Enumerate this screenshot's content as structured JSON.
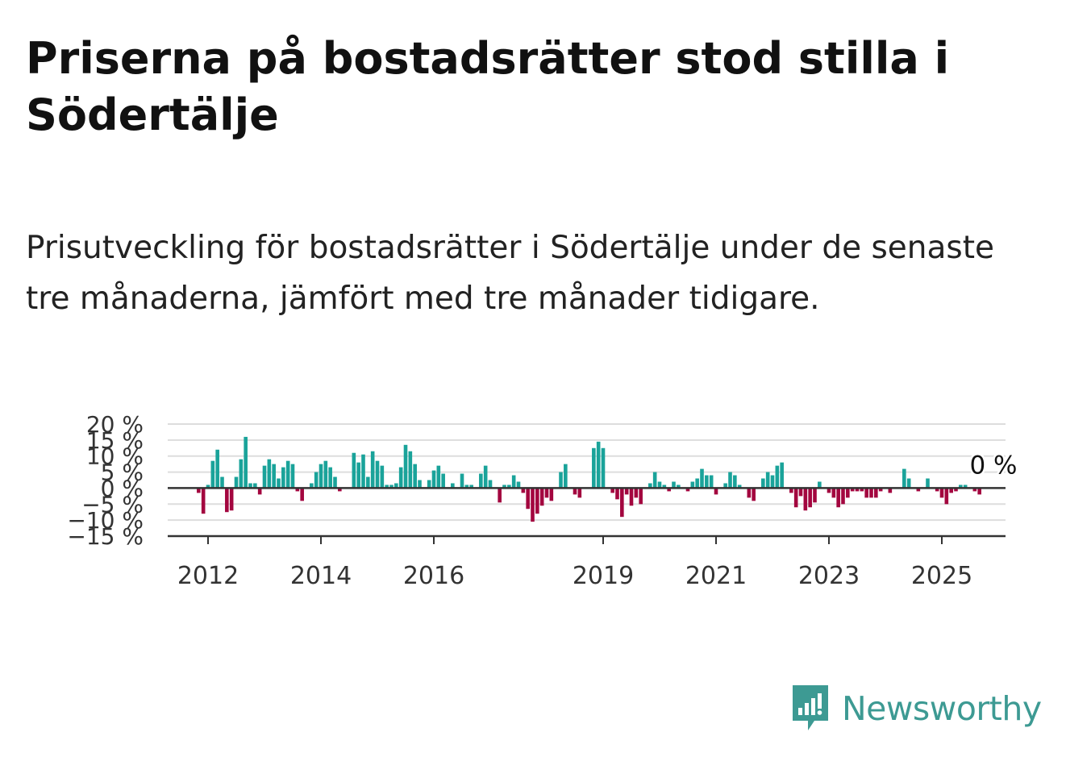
{
  "header": {
    "title": "Priserna på bostadsrätter stod stilla i Södertälje",
    "subtitle": "Prisutveckling för bostadsrätter i Södertälje under de senaste tre månaderna, jämfört med tre månader tidigare."
  },
  "brand": {
    "name": "Newsworthy",
    "icon": "newsworthy-logo-icon",
    "color": "#3d9a93"
  },
  "chart_data": {
    "type": "bar",
    "title": "",
    "xlabel": "",
    "ylabel": "",
    "ylim": [
      -15,
      20
    ],
    "y_ticks": [
      {
        "value": 20,
        "label": "20 %"
      },
      {
        "value": 15,
        "label": "15 %"
      },
      {
        "value": 10,
        "label": "10 %"
      },
      {
        "value": 5,
        "label": "5 %"
      },
      {
        "value": 0,
        "label": "0 %"
      },
      {
        "value": -5,
        "label": "−5 %"
      },
      {
        "value": -10,
        "label": "−10 %"
      },
      {
        "value": -15,
        "label": "−15 %"
      }
    ],
    "x_ticks": [
      {
        "year": 2012,
        "label": "2012"
      },
      {
        "year": 2014,
        "label": "2014"
      },
      {
        "year": 2016,
        "label": "2016"
      },
      {
        "year": 2019,
        "label": "2019"
      },
      {
        "year": 2021,
        "label": "2021"
      },
      {
        "year": 2023,
        "label": "2023"
      },
      {
        "year": 2025,
        "label": "2025"
      }
    ],
    "start": "2011-11",
    "frequency": "monthly",
    "grid": true,
    "colors": {
      "positive": "#1aa39a",
      "negative": "#a3063f",
      "grid": "#dddddd",
      "zero_line": "#333333",
      "axis": "#333333"
    },
    "annotation": {
      "label": "0 %",
      "value": 0
    },
    "values": [
      -1.5,
      -8,
      1,
      8.5,
      12,
      3.5,
      -7.5,
      -7,
      3.5,
      9,
      16,
      1.5,
      1.5,
      -2,
      7,
      9,
      7.5,
      3,
      6.5,
      8.5,
      7.5,
      -1,
      -4,
      0,
      1.5,
      5,
      7.5,
      8.5,
      6.5,
      3.5,
      -1,
      0,
      0,
      11,
      8,
      10.5,
      3.5,
      11.5,
      8.5,
      7,
      1,
      1,
      1.5,
      6.5,
      13.5,
      11.5,
      7.5,
      2.5,
      0,
      2.5,
      5.5,
      7,
      4.5,
      0,
      1.5,
      0,
      4.5,
      1,
      1,
      0,
      4.5,
      7,
      2.5,
      0,
      -4.5,
      1,
      1,
      4,
      2,
      -1.5,
      -6.5,
      -10.5,
      -8,
      -5.5,
      -3,
      -4,
      0,
      5,
      7.5,
      0,
      -2,
      -3,
      0,
      0,
      12.5,
      14.5,
      12.5,
      0,
      -1.5,
      -3.5,
      -9,
      -2,
      -5.5,
      -3,
      -5,
      0,
      1.5,
      5,
      2,
      1,
      -1,
      2,
      1,
      0,
      -1,
      2,
      3,
      6,
      4,
      4,
      -2,
      0,
      1.5,
      5,
      4,
      1,
      0,
      -3,
      -4,
      0,
      3,
      5,
      4,
      7,
      8,
      0,
      -1.5,
      -6,
      -2.5,
      -7,
      -6,
      -4.5,
      2,
      0,
      -1.5,
      -3,
      -6,
      -5,
      -3,
      -1,
      -1,
      -1,
      -3,
      -3,
      -3,
      -1,
      0,
      -1.5,
      0,
      0,
      6,
      3,
      0,
      -1,
      0,
      3,
      0,
      -1,
      -3,
      -5,
      -1.5,
      -1,
      1,
      1,
      0,
      -1,
      -2,
      0,
      0,
      0,
      0
    ]
  }
}
